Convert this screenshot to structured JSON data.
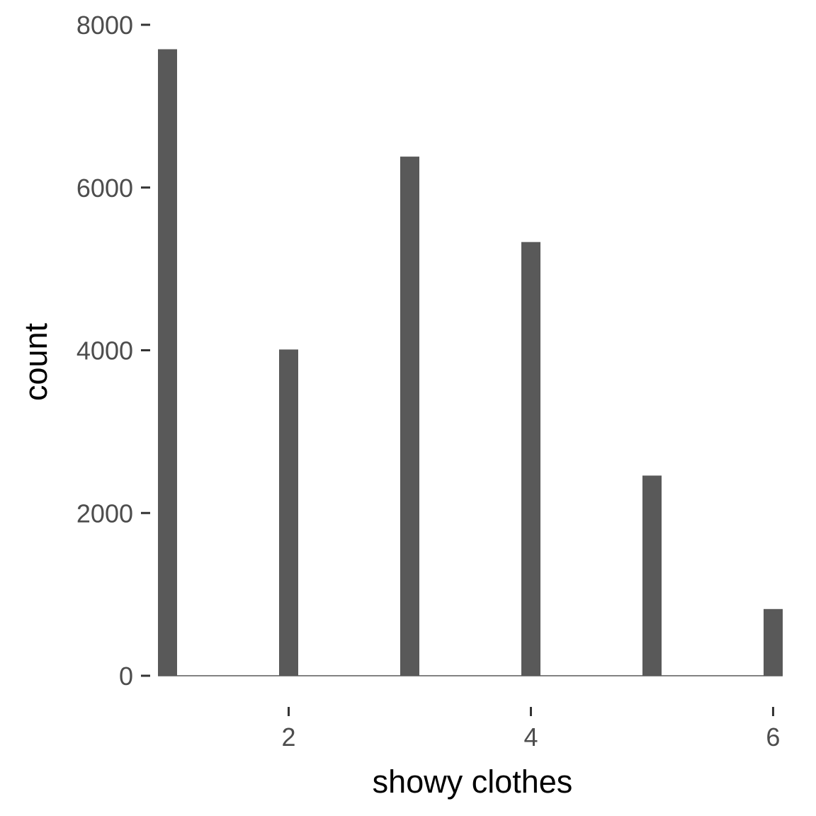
{
  "chart_data": {
    "type": "bar",
    "title": "",
    "xlabel": "showy clothes",
    "ylabel": "count",
    "x": [
      1,
      2,
      3,
      4,
      5,
      6
    ],
    "values": [
      7700,
      4010,
      6380,
      5330,
      2460,
      820
    ],
    "xlim": [
      0.95,
      6.05
    ],
    "ylim": [
      0,
      8000
    ],
    "xticks": [
      2,
      4,
      6
    ],
    "xtick_labels": [
      "2",
      "4",
      "6"
    ],
    "yticks": [
      0,
      2000,
      4000,
      6000,
      8000
    ],
    "ytick_labels": [
      "0",
      "2000",
      "4000",
      "6000",
      "8000"
    ],
    "grid": false,
    "legend": "none",
    "bar_color": "#595959",
    "baseline_color": "#595959"
  }
}
